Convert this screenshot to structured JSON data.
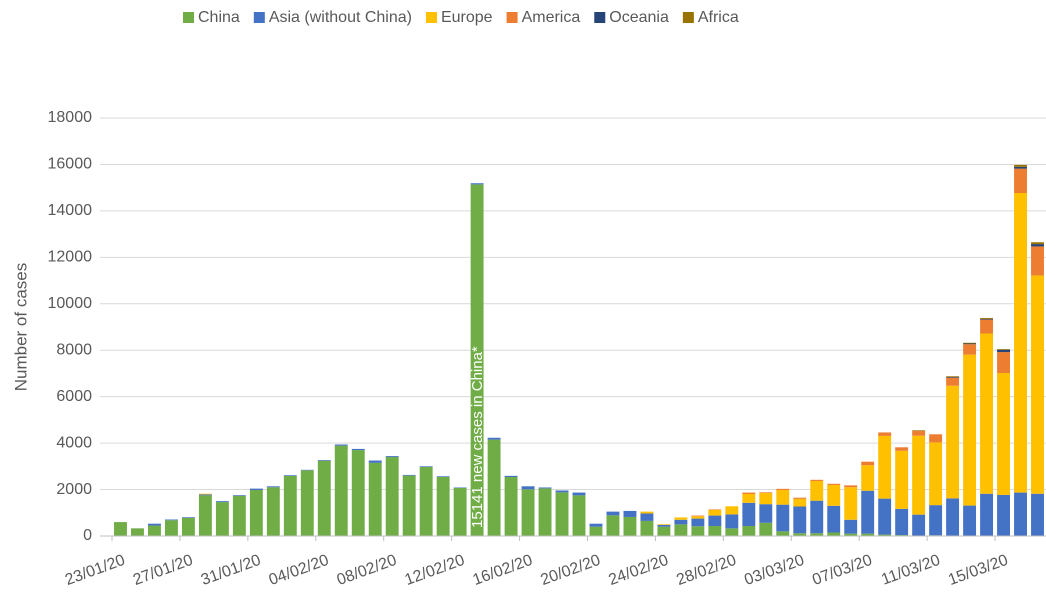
{
  "chart_data": {
    "type": "stacked_bar",
    "y_label": "Number of cases",
    "annotation": "15141 new cases in China*",
    "categories": [
      "23/01/20",
      null,
      null,
      null,
      "27/01/20",
      null,
      null,
      null,
      "31/01/20",
      null,
      null,
      null,
      "04/02/20",
      null,
      null,
      null,
      "08/02/20",
      null,
      null,
      null,
      "12/02/20",
      null,
      null,
      null,
      "16/02/20",
      null,
      null,
      null,
      "20/02/20",
      null,
      null,
      null,
      "24/02/20",
      null,
      null,
      null,
      "28/02/20",
      null,
      null,
      null,
      "03/03/20",
      null,
      null,
      null,
      "07/03/20",
      null,
      null,
      null,
      "11/03/20",
      null,
      null,
      null,
      "15/03/20",
      null,
      null
    ],
    "series": [
      {
        "name": "China",
        "color": "#70ad47",
        "values": [
          600,
          330,
          450,
          680,
          780,
          1750,
          1460,
          1730,
          1980,
          2100,
          2590,
          2830,
          3240,
          3890,
          3700,
          3150,
          3400,
          2600,
          2970,
          2540,
          2070,
          15141,
          4150,
          2540,
          2010,
          2050,
          1880,
          1750,
          400,
          890,
          820,
          650,
          400,
          500,
          420,
          430,
          330,
          430,
          570,
          200,
          120,
          120,
          150,
          100,
          100,
          60,
          40,
          20,
          30,
          20,
          10,
          20,
          20,
          20,
          20
        ]
      },
      {
        "name": "Asia (without China)",
        "color": "#4472c4",
        "values": [
          0,
          0,
          80,
          30,
          30,
          40,
          40,
          30,
          60,
          40,
          30,
          20,
          30,
          50,
          50,
          100,
          40,
          30,
          30,
          30,
          20,
          50,
          80,
          50,
          130,
          40,
          80,
          120,
          130,
          160,
          260,
          320,
          80,
          200,
          330,
          450,
          600,
          1000,
          800,
          1150,
          1150,
          1400,
          1150,
          600,
          1850,
          1550,
          1130,
          900,
          1300,
          1600,
          1300,
          1800,
          1750,
          1850,
          1800
        ]
      },
      {
        "name": "Europe",
        "color": "#ffc000",
        "values": [
          0,
          0,
          0,
          0,
          0,
          30,
          0,
          0,
          0,
          0,
          0,
          0,
          0,
          0,
          0,
          0,
          0,
          0,
          0,
          0,
          0,
          0,
          0,
          0,
          0,
          0,
          0,
          0,
          0,
          0,
          0,
          80,
          30,
          100,
          100,
          250,
          350,
          380,
          480,
          630,
          330,
          850,
          900,
          1400,
          1100,
          2700,
          2500,
          3400,
          2700,
          4850,
          6500,
          6900,
          5250,
          12900,
          9400
        ]
      },
      {
        "name": "America",
        "color": "#ed7d31",
        "values": [
          0,
          0,
          0,
          0,
          0,
          0,
          0,
          0,
          0,
          0,
          0,
          0,
          0,
          0,
          0,
          0,
          0,
          0,
          0,
          0,
          0,
          0,
          0,
          0,
          0,
          0,
          0,
          0,
          0,
          0,
          0,
          0,
          0,
          0,
          30,
          20,
          0,
          60,
          30,
          50,
          50,
          50,
          50,
          80,
          150,
          150,
          150,
          200,
          350,
          350,
          450,
          600,
          900,
          1050,
          1250
        ]
      },
      {
        "name": "Oceania",
        "color": "#264478",
        "values": [
          0,
          0,
          0,
          0,
          0,
          0,
          0,
          0,
          0,
          0,
          0,
          0,
          0,
          0,
          0,
          0,
          0,
          0,
          0,
          0,
          0,
          0,
          0,
          0,
          0,
          0,
          0,
          0,
          0,
          0,
          0,
          0,
          0,
          0,
          0,
          0,
          0,
          0,
          0,
          0,
          0,
          0,
          0,
          0,
          0,
          0,
          0,
          0,
          0,
          30,
          30,
          30,
          100,
          80,
          100
        ]
      },
      {
        "name": "Africa",
        "color": "#997300",
        "values": [
          0,
          0,
          0,
          0,
          0,
          0,
          0,
          0,
          0,
          0,
          0,
          0,
          0,
          0,
          0,
          0,
          0,
          0,
          0,
          0,
          0,
          0,
          0,
          0,
          0,
          0,
          0,
          0,
          0,
          0,
          0,
          0,
          0,
          0,
          0,
          0,
          0,
          0,
          0,
          0,
          0,
          0,
          0,
          0,
          0,
          0,
          0,
          30,
          0,
          30,
          30,
          40,
          30,
          80,
          80
        ]
      }
    ],
    "annotation_index": 21,
    "ylim": [
      0,
      18000
    ],
    "yticks": [
      0,
      2000,
      4000,
      6000,
      8000,
      10000,
      12000,
      14000,
      16000,
      18000
    ],
    "grid": true,
    "legend": "top"
  }
}
